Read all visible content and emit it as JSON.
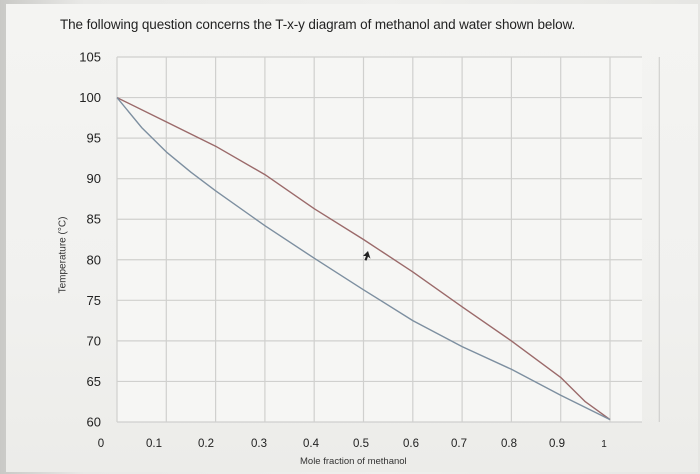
{
  "question": "The following question concerns the T-x-y diagram of methanol and water shown below.",
  "chart_data": {
    "type": "line",
    "title": "",
    "xlabel": "Mole fraction of methanol",
    "ylabel": "Temperature (°C)",
    "xlim": [
      0,
      1
    ],
    "ylim": [
      60,
      105
    ],
    "x_ticks": [
      "0",
      "0.1",
      "0.2",
      "0.3",
      "0.4",
      "0.5",
      "0.6",
      "0.7",
      "0.8",
      "0.9",
      "1"
    ],
    "y_ticks": [
      "105",
      "100",
      "95",
      "90",
      "85",
      "80",
      "75",
      "70",
      "65",
      "60"
    ],
    "grid": true,
    "legend": "none",
    "series": [
      {
        "color": "#9b6a6a",
        "x": [
          0,
          0.1,
          0.2,
          0.3,
          0.4,
          0.5,
          0.6,
          0.7,
          0.8,
          0.9,
          0.95,
          1
        ],
        "y": [
          100,
          97,
          94,
          90.5,
          86.3,
          82.5,
          78.5,
          74.2,
          70,
          65.5,
          62.5,
          60.3
        ]
      },
      {
        "color": "#7d8fa0",
        "x": [
          0,
          0.05,
          0.1,
          0.15,
          0.2,
          0.3,
          0.4,
          0.5,
          0.6,
          0.7,
          0.8,
          0.9,
          1
        ],
        "y": [
          100,
          96.3,
          93.3,
          90.8,
          88.5,
          84.2,
          80.2,
          76.3,
          72.5,
          69.3,
          66.5,
          63.3,
          60.3
        ]
      }
    ]
  }
}
